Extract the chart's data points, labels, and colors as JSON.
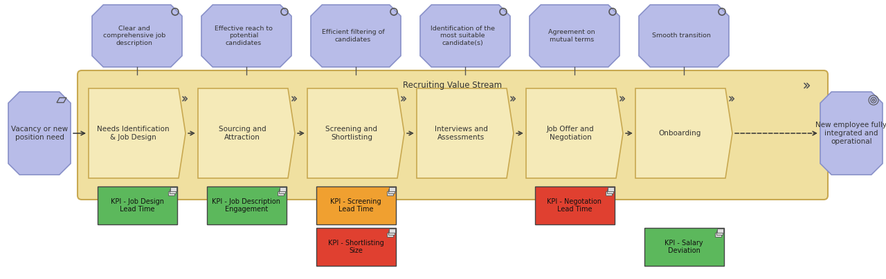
{
  "fig_width": 12.8,
  "fig_height": 4.04,
  "dpi": 100,
  "bg_color": "#ffffff",
  "value_stream_bg": "#f0e0a0",
  "value_stream_border": "#c8a850",
  "value_stream_title": "Recruiting Value Stream",
  "step_bg": "#f5eab8",
  "step_border": "#c8a850",
  "outcome_bg": "#b8bce8",
  "outcome_border": "#8890c8",
  "trigger_bg": "#b8bce8",
  "trigger_border": "#8890c8",
  "result_bg": "#b8bce8",
  "result_border": "#8890c8",
  "steps": [
    "Needs Identification\n& Job Design",
    "Sourcing and\nAttraction",
    "Screening and\nShortlisting",
    "Interviews and\nAssessments",
    "Job Offer and\nNegotiation",
    "Onboarding"
  ],
  "outcomes": [
    "Clear and\ncomprehensive job\ndescription",
    "Effective reach to\npotential\ncandidates",
    "Efficient filtering of\ncandidates",
    "Identification of the\nmost suitable\ncandidate(s)",
    "Agreement on\nmutual terms",
    "Smooth transition"
  ],
  "trigger_text": "Vacancy or new\nposition need",
  "result_text": "New employee fully\nintegrated and\noperational",
  "kpis": [
    {
      "text": "KPI - Job Design\nLead Time",
      "color": "#5cb85c",
      "col": 0,
      "row": 0
    },
    {
      "text": "KPI - Job Description\nEngagement",
      "color": "#5cb85c",
      "col": 1,
      "row": 0
    },
    {
      "text": "KPI - Screening\nLead Time",
      "color": "#f0a030",
      "col": 2,
      "row": 0
    },
    {
      "text": "KPI - Shortlisting\nSize",
      "color": "#e04030",
      "col": 2,
      "row": 1
    },
    {
      "text": "KPI - Negotation\nLead Time",
      "color": "#e04030",
      "col": 4,
      "row": 0
    },
    {
      "text": "KPI - Salary\nDeviation",
      "color": "#5cb85c",
      "col": 5,
      "row": 1
    }
  ]
}
